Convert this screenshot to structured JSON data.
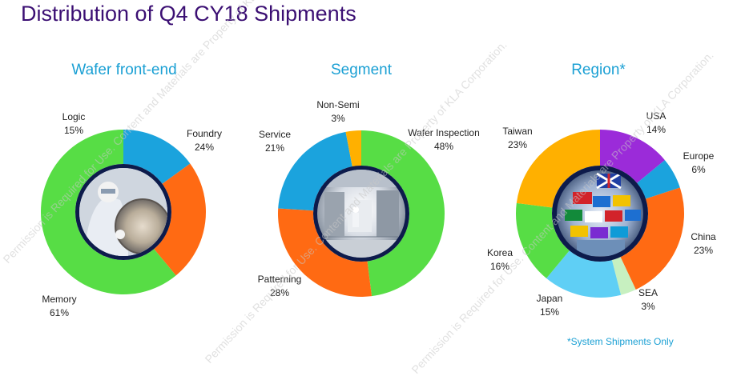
{
  "title": "Distribution of Q4 CY18 Shipments",
  "footnote": "*System Shipments Only",
  "watermark": "Permission is Required for Use. Content and Materials are Property of KLA Corporation.",
  "chart_data": [
    {
      "type": "pie",
      "title": "Wafer front-end",
      "categories": [
        "Logic",
        "Foundry",
        "Memory"
      ],
      "values": [
        15,
        24,
        61
      ],
      "labels": [
        "15%",
        "24%",
        "61%"
      ],
      "colors": [
        "#1ba3dd",
        "#ff6a13",
        "#57dd45"
      ],
      "center_image": "wafer-technician-photo"
    },
    {
      "type": "pie",
      "title": "Segment",
      "categories": [
        "Wafer Inspection",
        "Patterning",
        "Service",
        "Non-Semi"
      ],
      "values": [
        48,
        28,
        21,
        3
      ],
      "labels": [
        "48%",
        "28%",
        "21%",
        "3%"
      ],
      "colors": [
        "#57dd45",
        "#ff6a13",
        "#1ba3dd",
        "#ffb000"
      ],
      "center_image": "cleanroom-photo"
    },
    {
      "type": "pie",
      "title": "Region*",
      "categories": [
        "USA",
        "Europe",
        "China",
        "SEA",
        "Japan",
        "Korea",
        "Taiwan"
      ],
      "values": [
        14,
        6,
        23,
        3,
        15,
        16,
        23
      ],
      "labels": [
        "14%",
        "6%",
        "23%",
        "3%",
        "15%",
        "16%",
        "23%"
      ],
      "colors": [
        "#9b2bd9",
        "#1ba3dd",
        "#ff6a13",
        "#c7f0c0",
        "#5fcff5",
        "#57dd45",
        "#ffb000"
      ],
      "center_image": "world-flags-photo"
    }
  ]
}
